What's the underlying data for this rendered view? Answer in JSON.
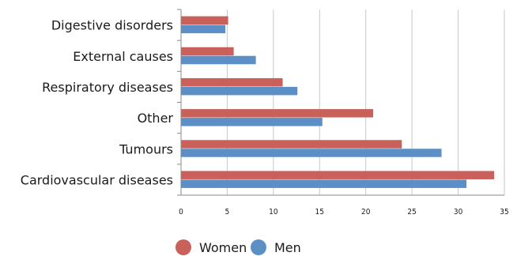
{
  "chart_data": {
    "type": "bar",
    "orientation": "horizontal",
    "categories": [
      "Digestive disorders",
      "External causes",
      "Respiratory diseases",
      "Other",
      "Tumours",
      "Cardiovascular diseases"
    ],
    "series": [
      {
        "name": "Women",
        "color": "#c9605a",
        "values": [
          5.1,
          5.7,
          11.0,
          20.8,
          23.9,
          33.9
        ]
      },
      {
        "name": "Men",
        "color": "#5b8fc6",
        "values": [
          4.8,
          8.1,
          12.6,
          15.3,
          28.2,
          30.9
        ]
      }
    ],
    "xlim": [
      0,
      35
    ],
    "xticks": [
      "0",
      "5",
      "10",
      "15",
      "20",
      "25",
      "30",
      "35"
    ],
    "tick_values": [
      0,
      5,
      10,
      15,
      20,
      25,
      30,
      35
    ],
    "grid": true,
    "legend_position": "bottom",
    "title": "",
    "xlabel": "",
    "ylabel": ""
  }
}
